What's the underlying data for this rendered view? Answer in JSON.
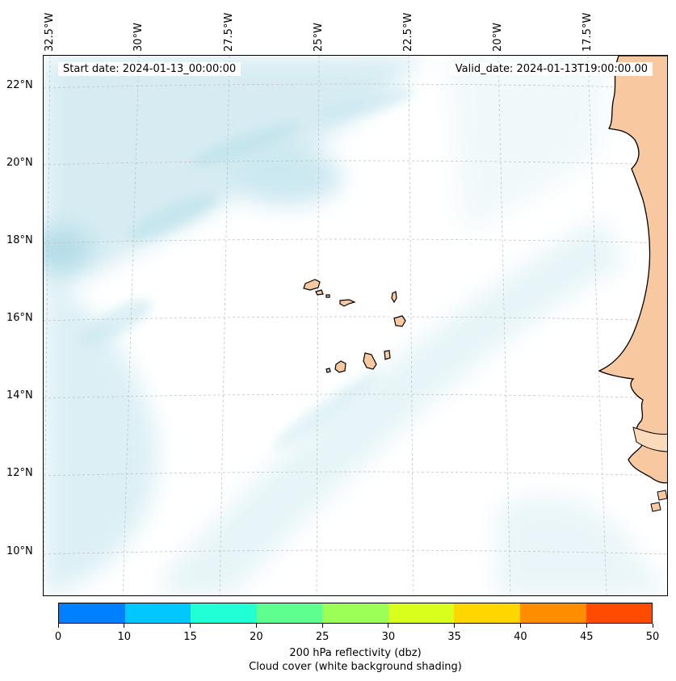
{
  "map": {
    "extent": {
      "lon_min": -33.0,
      "lon_max": -15.8,
      "lat_min": 8.8,
      "lat_max": 22.8
    },
    "lon_ticks": [
      "32.5°W",
      "30°W",
      "27.5°W",
      "25°W",
      "22.5°W",
      "20°W",
      "17.5°W"
    ],
    "lat_ticks": [
      "22°N",
      "20°N",
      "18°N",
      "16°N",
      "14°N",
      "12°N",
      "10°N"
    ],
    "gridlines": true,
    "land_color": "#f8c9a0",
    "cloud_color": "#bfe3ec",
    "features": [
      "Cape Verde islands",
      "West African coastline"
    ]
  },
  "annotations": {
    "start_date": "Start date: 2024-01-13_00:00:00",
    "valid_date": "Valid_date: 2024-01-13T19:00:00.00"
  },
  "colorbar": {
    "ticks": [
      "0",
      "10",
      "15",
      "20",
      "25",
      "30",
      "35",
      "40",
      "45",
      "50"
    ],
    "colors": [
      "#0080ff",
      "#00c8ff",
      "#21ffd5",
      "#5fff8f",
      "#9bff55",
      "#d9ff1d",
      "#ffd600",
      "#ff8d00",
      "#ff4b00"
    ],
    "label_line1": "200 hPa reflectivity (dbz)",
    "label_line2": "Cloud cover (white background shading)"
  }
}
